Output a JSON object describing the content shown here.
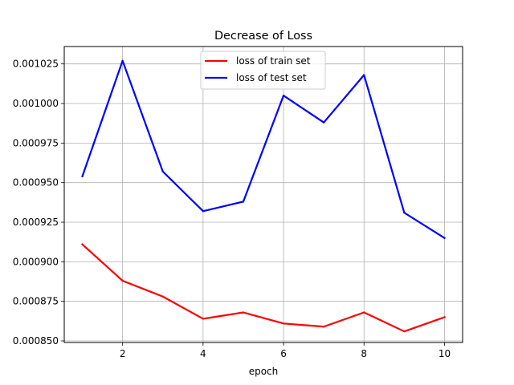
{
  "chart_data": {
    "type": "line",
    "title": "Decrease of Loss",
    "xlabel": "epoch",
    "ylabel": "",
    "x": [
      1,
      2,
      3,
      4,
      5,
      6,
      7,
      8,
      9,
      10
    ],
    "xlim": [
      0.55,
      10.45
    ],
    "ylim": [
      0.000849,
      0.001036
    ],
    "xticks": [
      2,
      4,
      6,
      8,
      10
    ],
    "xtick_labels": [
      "2",
      "4",
      "6",
      "8",
      "10"
    ],
    "yticks": [
      0.00085,
      0.000875,
      0.0009,
      0.000925,
      0.00095,
      0.000975,
      0.001,
      0.001025
    ],
    "ytick_labels": [
      "0.000850",
      "0.000875",
      "0.000900",
      "0.000925",
      "0.000950",
      "0.000975",
      "0.001000",
      "0.001025"
    ],
    "grid": true,
    "legend_position": "top-center",
    "series": [
      {
        "name": "loss of train set",
        "color": "#ff0000",
        "values": [
          0.000911,
          0.000888,
          0.000878,
          0.000864,
          0.000868,
          0.000861,
          0.000859,
          0.000868,
          0.000856,
          0.000865
        ]
      },
      {
        "name": "loss of test set",
        "color": "#0000ff",
        "values": [
          0.000954,
          0.001027,
          0.000957,
          0.000932,
          0.000938,
          0.001005,
          0.000988,
          0.001018,
          0.000931,
          0.000915
        ]
      }
    ]
  }
}
